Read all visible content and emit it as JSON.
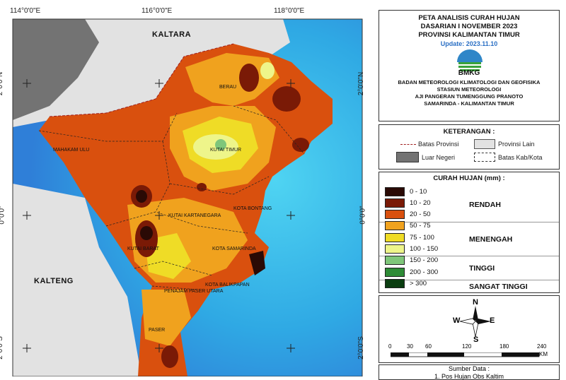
{
  "graticule": {
    "lon": [
      "114°0'0\"E",
      "116°0'0\"E",
      "118°0'0\"E"
    ],
    "lat": [
      "2°0'0\"N",
      "0°0'0\"",
      "2°0'0\"S"
    ]
  },
  "map_labels": {
    "kaltara": "KALTARA",
    "kalteng": "KALTENG",
    "berau": "BERAU",
    "kutai_timur": "KUTAI TIMUR",
    "mahakam_ulu": "MAHAKAM ULU",
    "kutai_kartanegara": "KUTAI KARTANEGARA",
    "bontang": "KOTA BONTANG",
    "kutai_barat": "KUTAI BARAT",
    "samarinda": "KOTA SAMARINDA",
    "balikpapan": "KOTA BALIKPAPAN",
    "penajam": "PENAJAM PASER UTARA",
    "paser": "PASER"
  },
  "title": {
    "line1": "PETA ANALISIS CURAH HUJAN",
    "line2": "DASARIAN I NOVEMBER 2023",
    "line3": "PROVINSI KALIMANTAN TIMUR",
    "update": "Update: 2023.11.10",
    "logo_text": "BMKG",
    "org1": "BADAN METEOROLOGI KLIMATOLOGI DAN GEOFISIKA",
    "org2": "STASIUN METEOROLOGI",
    "org3": "AJI PANGERAN TUMENGGUNG PRANOTO",
    "org4": "SAMARINDA - KALIMANTAN TIMUR"
  },
  "keterangan": {
    "title": "KETERANGAN :",
    "batas_provinsi": "Batas Provinsi",
    "provinsi_lain": "Provinsi Lain",
    "luar_negeri": "Luar Negeri",
    "batas_kab": "Batas Kab/Kota"
  },
  "curah_hujan": {
    "title": "CURAH HUJAN (mm) :",
    "classes": [
      {
        "label": "0 - 10",
        "color": "#2a0a05"
      },
      {
        "label": "10 - 20",
        "color": "#7a1a06"
      },
      {
        "label": "20 - 50",
        "color": "#d9500e"
      },
      {
        "label": "50 - 75",
        "color": "#f0a21e"
      },
      {
        "label": "75 - 100",
        "color": "#efdc26"
      },
      {
        "label": "100 - 150",
        "color": "#eef58a"
      },
      {
        "label": "150 - 200",
        "color": "#7fc67a"
      },
      {
        "label": "200 - 300",
        "color": "#2e8b36"
      },
      {
        "label": "> 300",
        "color": "#0a3d10"
      }
    ],
    "categories": [
      "RENDAH",
      "MENENGAH",
      "TINGGI",
      "SANGAT TINGGI"
    ]
  },
  "north": {
    "n": "N",
    "s": "S",
    "e": "E",
    "w": "W"
  },
  "scale": {
    "ticks": [
      "0",
      "30",
      "60",
      "120",
      "180",
      "240"
    ],
    "unit": "KM"
  },
  "source": {
    "title": "Sumber Data :",
    "line1": "1. Pos Hujan Obs Kaltim"
  },
  "colors": {
    "sea": "#38b6e6",
    "land_other": "#e2e2e2",
    "foreign": "#737373"
  }
}
